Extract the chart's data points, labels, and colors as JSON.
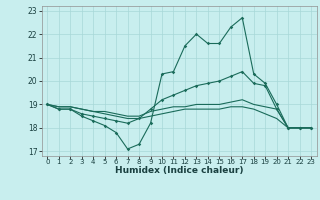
{
  "title": "",
  "xlabel": "Humidex (Indice chaleur)",
  "ylabel": "",
  "bg_color": "#c8eeee",
  "grid_color": "#a8d8d8",
  "line_color": "#1a6b5a",
  "xlim": [
    -0.5,
    23.5
  ],
  "ylim": [
    16.8,
    23.2
  ],
  "yticks": [
    17,
    18,
    19,
    20,
    21,
    22,
    23
  ],
  "xticks": [
    0,
    1,
    2,
    3,
    4,
    5,
    6,
    7,
    8,
    9,
    10,
    11,
    12,
    13,
    14,
    15,
    16,
    17,
    18,
    19,
    20,
    21,
    22,
    23
  ],
  "series": [
    [
      19.0,
      18.8,
      18.8,
      18.5,
      18.3,
      18.1,
      17.8,
      17.1,
      17.3,
      18.2,
      20.3,
      20.4,
      21.5,
      22.0,
      21.6,
      21.6,
      22.3,
      22.7,
      20.3,
      19.9,
      19.0,
      18.0,
      18.0,
      18.0
    ],
    [
      19.0,
      18.8,
      18.8,
      18.6,
      18.5,
      18.4,
      18.3,
      18.2,
      18.4,
      18.8,
      19.2,
      19.4,
      19.6,
      19.8,
      19.9,
      20.0,
      20.2,
      20.4,
      19.9,
      19.8,
      18.8,
      18.0,
      18.0,
      18.0
    ],
    [
      19.0,
      18.9,
      18.9,
      18.8,
      18.7,
      18.7,
      18.6,
      18.5,
      18.5,
      18.7,
      18.8,
      18.9,
      18.9,
      19.0,
      19.0,
      19.0,
      19.1,
      19.2,
      19.0,
      18.9,
      18.8,
      18.0,
      18.0,
      18.0
    ],
    [
      19.0,
      18.9,
      18.9,
      18.8,
      18.7,
      18.6,
      18.5,
      18.4,
      18.4,
      18.5,
      18.6,
      18.7,
      18.8,
      18.8,
      18.8,
      18.8,
      18.9,
      18.9,
      18.8,
      18.6,
      18.4,
      18.0,
      18.0,
      18.0
    ]
  ],
  "markers": [
    true,
    true,
    false,
    false
  ]
}
